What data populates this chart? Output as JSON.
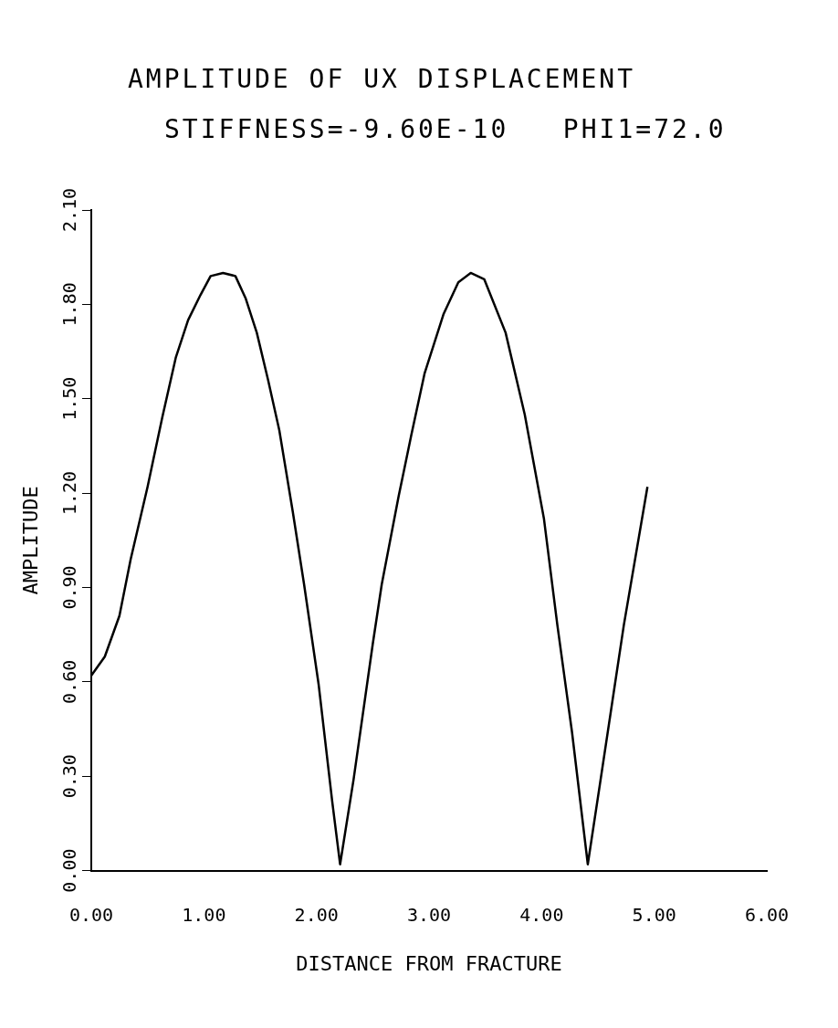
{
  "chart_data": {
    "type": "line",
    "title": "AMPLITUDE OF UX DISPLACEMENT",
    "subtitle": "STIFFNESS=-9.60E-10   PHI1=72.0",
    "xlabel": "DISTANCE FROM FRACTURE",
    "ylabel": "AMPLITUDE",
    "xlim": [
      0,
      6
    ],
    "ylim": [
      0,
      2.1
    ],
    "xticks": [
      {
        "value": 0,
        "label": "0.00"
      },
      {
        "value": 1,
        "label": "1.00"
      },
      {
        "value": 2,
        "label": "2.00"
      },
      {
        "value": 3,
        "label": "3.00"
      },
      {
        "value": 4,
        "label": "4.00"
      },
      {
        "value": 5,
        "label": "5.00"
      },
      {
        "value": 6,
        "label": "6.00"
      }
    ],
    "yticks": [
      {
        "value": 0,
        "label": "0.00"
      },
      {
        "value": 0.3,
        "label": "0.30"
      },
      {
        "value": 0.6,
        "label": "0.60"
      },
      {
        "value": 0.9,
        "label": "0.90"
      },
      {
        "value": 1.2,
        "label": "1.20"
      },
      {
        "value": 1.5,
        "label": "1.50"
      },
      {
        "value": 1.8,
        "label": "1.80"
      },
      {
        "value": 2.1,
        "label": "2.10"
      }
    ],
    "grid": false,
    "legend": false,
    "marker": "none",
    "line_style": "solid",
    "series": [
      {
        "color": "#000000",
        "x": [
          0,
          0.12,
          0.25,
          0.35,
          0.5,
          0.63,
          0.75,
          0.86,
          0.97,
          1.06,
          1.17,
          1.28,
          1.37,
          1.47,
          1.57,
          1.67,
          1.79,
          1.89,
          2.02,
          2.14,
          2.21,
          2.33,
          2.5,
          2.58,
          2.73,
          2.84,
          2.96,
          3.13,
          3.26,
          3.37,
          3.49,
          3.68,
          3.85,
          4.02,
          4.14,
          4.27,
          4.41,
          4.52,
          4.73,
          4.94
        ],
        "values": [
          0.62,
          0.68,
          0.81,
          0.99,
          1.22,
          1.44,
          1.63,
          1.75,
          1.83,
          1.89,
          1.9,
          1.89,
          1.82,
          1.71,
          1.56,
          1.4,
          1.14,
          0.91,
          0.59,
          0.22,
          0.02,
          0.29,
          0.72,
          0.91,
          1.19,
          1.38,
          1.58,
          1.77,
          1.87,
          1.9,
          1.88,
          1.71,
          1.45,
          1.12,
          0.78,
          0.44,
          0.02,
          0.28,
          0.78,
          1.22
        ]
      }
    ]
  }
}
